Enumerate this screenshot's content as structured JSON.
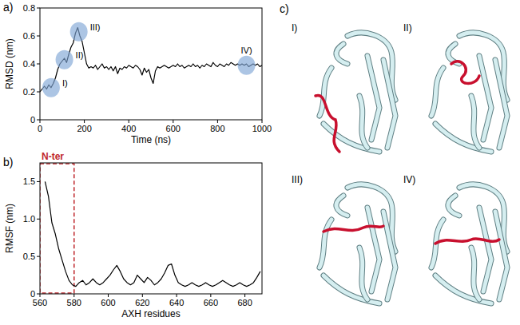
{
  "chart_data": [
    {
      "type": "line",
      "panel_label": "a)",
      "xlabel": "Time (ns)",
      "ylabel": "RMSD (nm)",
      "xlim": [
        0,
        1000
      ],
      "xticks": [
        0,
        200,
        400,
        600,
        800,
        1000
      ],
      "ylim": [
        0,
        0.8
      ],
      "yticks": [
        0,
        0.2,
        0.4,
        0.6,
        0.8
      ],
      "x": [
        0,
        10,
        20,
        30,
        40,
        50,
        60,
        70,
        80,
        90,
        100,
        110,
        120,
        130,
        140,
        150,
        160,
        170,
        180,
        190,
        200,
        210,
        220,
        230,
        240,
        250,
        260,
        270,
        280,
        290,
        300,
        310,
        320,
        330,
        340,
        350,
        360,
        370,
        380,
        390,
        400,
        410,
        420,
        430,
        440,
        450,
        460,
        470,
        480,
        490,
        500,
        510,
        520,
        530,
        540,
        550,
        560,
        570,
        580,
        590,
        600,
        610,
        620,
        630,
        640,
        650,
        660,
        670,
        680,
        690,
        700,
        710,
        720,
        730,
        740,
        750,
        760,
        770,
        780,
        790,
        800,
        810,
        820,
        830,
        840,
        850,
        860,
        870,
        880,
        890,
        900,
        910,
        920,
        930,
        940,
        950,
        960,
        970,
        980,
        990,
        1000
      ],
      "series": [
        {
          "name": "RMSD",
          "color": "#000000",
          "values": [
            0.2,
            0.22,
            0.24,
            0.22,
            0.25,
            0.23,
            0.26,
            0.3,
            0.36,
            0.4,
            0.42,
            0.44,
            0.41,
            0.47,
            0.52,
            0.55,
            0.62,
            0.66,
            0.6,
            0.56,
            0.48,
            0.4,
            0.37,
            0.38,
            0.37,
            0.39,
            0.36,
            0.38,
            0.4,
            0.37,
            0.38,
            0.36,
            0.38,
            0.35,
            0.38,
            0.33,
            0.37,
            0.36,
            0.38,
            0.37,
            0.39,
            0.38,
            0.37,
            0.39,
            0.38,
            0.36,
            0.32,
            0.37,
            0.34,
            0.36,
            0.3,
            0.26,
            0.35,
            0.38,
            0.37,
            0.38,
            0.39,
            0.38,
            0.37,
            0.38,
            0.39,
            0.38,
            0.4,
            0.38,
            0.39,
            0.37,
            0.38,
            0.39,
            0.38,
            0.4,
            0.38,
            0.39,
            0.37,
            0.39,
            0.38,
            0.4,
            0.39,
            0.38,
            0.41,
            0.39,
            0.38,
            0.4,
            0.39,
            0.38,
            0.4,
            0.39,
            0.41,
            0.4,
            0.39,
            0.4,
            0.39,
            0.4,
            0.39,
            0.4,
            0.38,
            0.39,
            0.4,
            0.39,
            0.4,
            0.38,
            0.39
          ]
        }
      ],
      "annotations": [
        {
          "label": "I)",
          "x": 50,
          "y": 0.23
        },
        {
          "label": "II)",
          "x": 110,
          "y": 0.43
        },
        {
          "label": "III)",
          "x": 175,
          "y": 0.63
        },
        {
          "label": "IV)",
          "x": 930,
          "y": 0.39
        }
      ]
    },
    {
      "type": "line",
      "panel_label": "b)",
      "xlabel": "AXH residues",
      "ylabel": "RMSF (nm)",
      "xlim": [
        560,
        690
      ],
      "xticks": [
        560,
        580,
        600,
        620,
        640,
        660,
        680
      ],
      "ylim": [
        0,
        1.75
      ],
      "yticks": [
        0,
        0.5,
        {
          "value": 1,
          "label": "1.0"
        },
        1.5
      ],
      "x": [
        563,
        565,
        567,
        569,
        571,
        573,
        575,
        577,
        579,
        581,
        583,
        585,
        587,
        589,
        591,
        593,
        595,
        597,
        599,
        601,
        603,
        605,
        607,
        609,
        611,
        613,
        615,
        617,
        619,
        621,
        623,
        625,
        627,
        629,
        631,
        633,
        635,
        637,
        639,
        641,
        643,
        645,
        647,
        649,
        651,
        653,
        655,
        657,
        659,
        661,
        663,
        665,
        667,
        669,
        671,
        673,
        675,
        677,
        679,
        681,
        683,
        685,
        687,
        689
      ],
      "series": [
        {
          "name": "RMSF",
          "color": "#000000",
          "values": [
            1.5,
            1.3,
            0.95,
            0.8,
            0.6,
            0.45,
            0.3,
            0.18,
            0.12,
            0.1,
            0.15,
            0.18,
            0.12,
            0.15,
            0.2,
            0.15,
            0.12,
            0.15,
            0.2,
            0.25,
            0.32,
            0.38,
            0.3,
            0.2,
            0.15,
            0.12,
            0.15,
            0.25,
            0.2,
            0.15,
            0.22,
            0.18,
            0.12,
            0.15,
            0.2,
            0.28,
            0.38,
            0.4,
            0.25,
            0.15,
            0.12,
            0.1,
            0.12,
            0.15,
            0.12,
            0.1,
            0.12,
            0.15,
            0.12,
            0.1,
            0.12,
            0.15,
            0.18,
            0.15,
            0.12,
            0.1,
            0.12,
            0.15,
            0.12,
            0.1,
            0.12,
            0.15,
            0.22,
            0.3
          ]
        }
      ],
      "highlight": {
        "label": "N-ter",
        "x": [
          560,
          580
        ],
        "color": "#c0282d"
      }
    }
  ],
  "panel_c": {
    "panel_label": "c)",
    "structures": [
      {
        "label": "I)"
      },
      {
        "label": "II)"
      },
      {
        "label": "III)"
      },
      {
        "label": "IV)"
      }
    ]
  }
}
